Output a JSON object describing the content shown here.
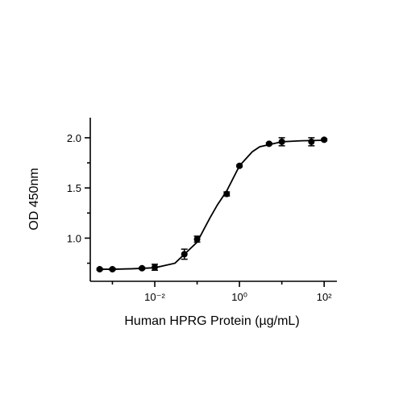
{
  "chart_data": {
    "type": "scatter",
    "xlabel": "Human HPRG Protein (µg/mL)",
    "ylabel": "OD 450nm",
    "xscale": "log",
    "x": [
      0.0005,
      0.001,
      0.005,
      0.01,
      0.05,
      0.1,
      0.5,
      1,
      5,
      10,
      50,
      100
    ],
    "values": [
      0.69,
      0.69,
      0.7,
      0.71,
      0.84,
      0.99,
      1.44,
      1.72,
      1.94,
      1.96,
      1.96,
      1.98
    ],
    "errors": [
      0.01,
      0.01,
      0.01,
      0.03,
      0.05,
      0.03,
      0.02,
      0.01,
      0.01,
      0.04,
      0.04,
      0.01
    ],
    "color": "#000000",
    "curve": {
      "x": [
        0.0005,
        0.001,
        0.003,
        0.01,
        0.03,
        0.1,
        0.2,
        0.3,
        0.5,
        1,
        2,
        3,
        10,
        30,
        100
      ],
      "y": [
        0.69,
        0.69,
        0.695,
        0.705,
        0.75,
        0.96,
        1.2,
        1.33,
        1.47,
        1.72,
        1.86,
        1.91,
        1.96,
        1.97,
        1.975
      ]
    },
    "xlim": [
      0.0003,
      200
    ],
    "ylim": [
      0.57,
      2.2
    ],
    "xticks": [
      {
        "value": 0.01,
        "label": "10⁻²"
      },
      {
        "value": 1,
        "label": "10⁰"
      },
      {
        "value": 100,
        "label": "10²"
      }
    ],
    "xminorticks": [
      0.001,
      0.1,
      10
    ],
    "yticks": [
      {
        "value": 1,
        "label": "1.0"
      },
      {
        "value": 1.5,
        "label": "1.5"
      },
      {
        "value": 2,
        "label": "2.0"
      }
    ],
    "yminorticks": [
      0.75,
      1.25,
      1.75
    ]
  }
}
